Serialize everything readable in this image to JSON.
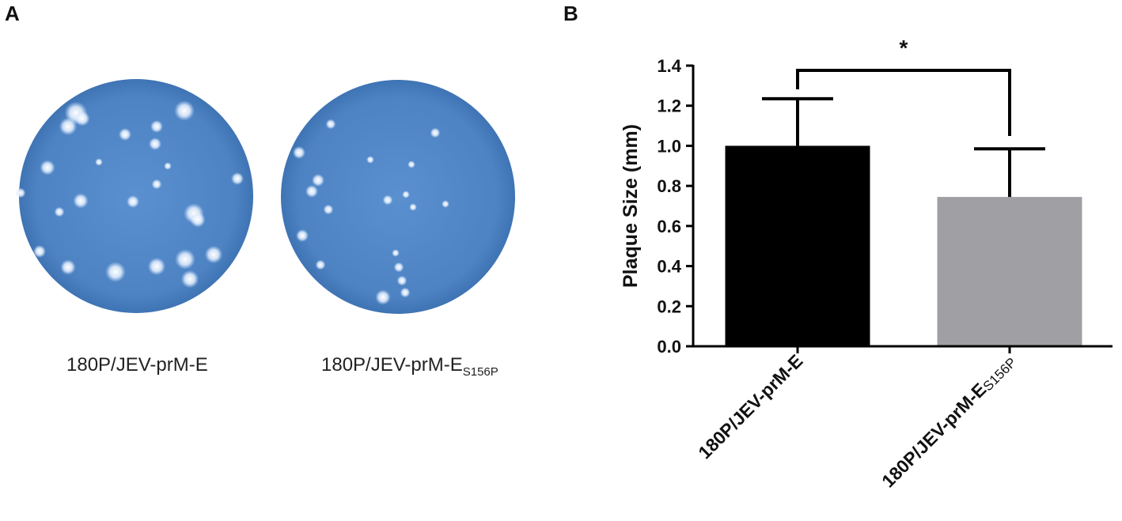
{
  "panels": {
    "a": {
      "letter": "A"
    },
    "b": {
      "letter": "B"
    }
  },
  "dishes": [
    {
      "label_main": "180P/JEV-prM-E",
      "label_sub": ""
    },
    {
      "label_main": "180P/JEV-prM-E",
      "label_sub": "S156P"
    }
  ],
  "colors": {
    "dish": "#4f86c6",
    "bar_1": "#000000",
    "bar_2": "#a0a0a4"
  },
  "chart_data": {
    "type": "bar",
    "ylabel": "Plaque Size (mm)",
    "ylim": [
      0,
      1.4
    ],
    "yticks": [
      "0.0",
      "0.2",
      "0.4",
      "0.6",
      "0.8",
      "1.0",
      "1.2",
      "1.4"
    ],
    "categories": [
      {
        "main": "180P/JEV-prM-E",
        "sub": ""
      },
      {
        "main": "180P/JEV-prM-E",
        "sub": "S156P"
      }
    ],
    "values": [
      1.0,
      0.745
    ],
    "error_upper": [
      1.235,
      0.985
    ],
    "significance": {
      "label": "*",
      "between": [
        0,
        1
      ]
    }
  }
}
